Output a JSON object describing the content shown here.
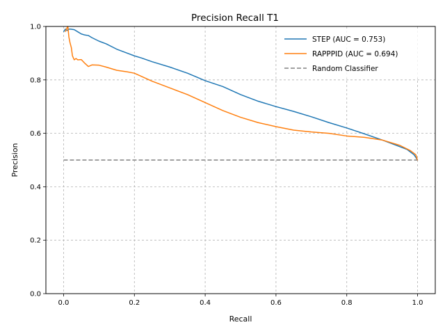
{
  "chart_data": {
    "type": "line",
    "title": "Precision Recall T1",
    "xlabel": "Recall",
    "ylabel": "Precision",
    "xlim": [
      -0.05,
      1.05
    ],
    "ylim": [
      0.0,
      1.0
    ],
    "xticks": [
      0.0,
      0.2,
      0.4,
      0.6,
      0.8,
      1.0
    ],
    "xtick_labels": [
      "0.0",
      "0.2",
      "0.4",
      "0.6",
      "0.8",
      "1.0"
    ],
    "yticks": [
      0.0,
      0.2,
      0.4,
      0.6,
      0.8,
      1.0
    ],
    "ytick_labels": [
      "0.0",
      "0.2",
      "0.4",
      "0.6",
      "0.8",
      "1.0"
    ],
    "grid": true,
    "legend_position": "top-right",
    "series": [
      {
        "name": "STEP (AUC = 0.753)",
        "color": "#1f77b4",
        "style": "solid",
        "x": [
          0.0,
          0.005,
          0.01,
          0.015,
          0.02,
          0.03,
          0.04,
          0.05,
          0.06,
          0.07,
          0.08,
          0.1,
          0.12,
          0.15,
          0.18,
          0.2,
          0.22,
          0.25,
          0.3,
          0.35,
          0.4,
          0.45,
          0.5,
          0.55,
          0.6,
          0.65,
          0.7,
          0.75,
          0.8,
          0.85,
          0.9,
          0.93,
          0.95,
          0.97,
          0.98,
          0.99,
          1.0
        ],
        "y": [
          0.98,
          0.99,
          0.985,
          0.99,
          0.99,
          0.988,
          0.98,
          0.972,
          0.968,
          0.966,
          0.958,
          0.945,
          0.935,
          0.915,
          0.9,
          0.89,
          0.882,
          0.868,
          0.848,
          0.825,
          0.797,
          0.775,
          0.745,
          0.72,
          0.7,
          0.682,
          0.662,
          0.64,
          0.62,
          0.598,
          0.575,
          0.56,
          0.55,
          0.54,
          0.53,
          0.52,
          0.5
        ]
      },
      {
        "name": "RAPPPID (AUC = 0.694)",
        "color": "#ff7f0e",
        "style": "solid",
        "x": [
          0.005,
          0.008,
          0.012,
          0.015,
          0.018,
          0.022,
          0.025,
          0.03,
          0.035,
          0.04,
          0.05,
          0.06,
          0.07,
          0.08,
          0.1,
          0.12,
          0.15,
          0.18,
          0.2,
          0.25,
          0.3,
          0.35,
          0.4,
          0.45,
          0.5,
          0.55,
          0.6,
          0.65,
          0.7,
          0.75,
          0.8,
          0.85,
          0.9,
          0.95,
          0.98,
          0.995,
          1.0
        ],
        "y": [
          0.98,
          0.99,
          1.0,
          0.96,
          0.94,
          0.92,
          0.89,
          0.875,
          0.88,
          0.875,
          0.876,
          0.862,
          0.85,
          0.856,
          0.855,
          0.848,
          0.836,
          0.83,
          0.825,
          0.795,
          0.77,
          0.745,
          0.715,
          0.685,
          0.66,
          0.64,
          0.625,
          0.612,
          0.605,
          0.6,
          0.59,
          0.585,
          0.575,
          0.555,
          0.535,
          0.52,
          0.498
        ]
      },
      {
        "name": "Random Classifier",
        "color": "#808080",
        "style": "dashed",
        "x": [
          0.0,
          1.0
        ],
        "y": [
          0.5,
          0.5
        ]
      }
    ]
  }
}
